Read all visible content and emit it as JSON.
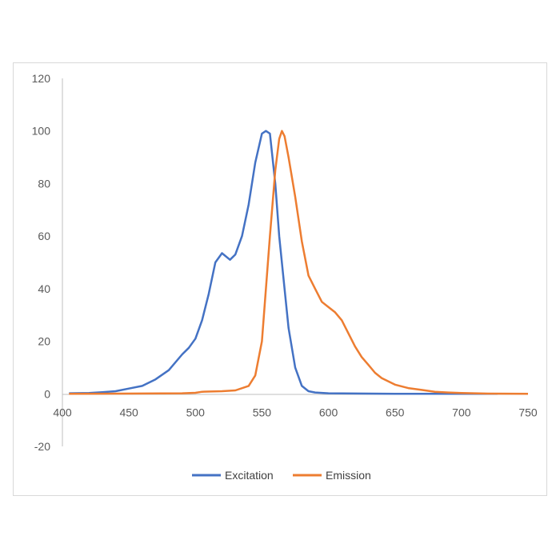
{
  "chart_data": {
    "type": "line",
    "title": "",
    "xlabel": "",
    "ylabel": "",
    "xlim": [
      400,
      750
    ],
    "ylim": [
      -20,
      120
    ],
    "x_ticks": [
      400,
      450,
      500,
      550,
      600,
      650,
      700,
      750
    ],
    "y_ticks": [
      -20,
      0,
      20,
      40,
      60,
      80,
      100,
      120
    ],
    "x_tick_labels": [
      "400",
      "450",
      "500",
      "550",
      "600",
      "650",
      "700",
      "750"
    ],
    "y_tick_labels": [
      "-20",
      "0",
      "20",
      "40",
      "60",
      "80",
      "100",
      "120"
    ],
    "grid": false,
    "legend_position": "bottom",
    "series": [
      {
        "name": "Excitation",
        "color": "#4472C4",
        "points": [
          [
            405,
            0.2
          ],
          [
            420,
            0.3
          ],
          [
            430,
            0.6
          ],
          [
            440,
            1.0
          ],
          [
            450,
            2.0
          ],
          [
            460,
            3.0
          ],
          [
            470,
            5.5
          ],
          [
            480,
            9.0
          ],
          [
            490,
            15.0
          ],
          [
            495,
            17.5
          ],
          [
            500,
            21.0
          ],
          [
            505,
            28.0
          ],
          [
            510,
            38.0
          ],
          [
            515,
            50.0
          ],
          [
            520,
            53.5
          ],
          [
            526,
            51.0
          ],
          [
            530,
            53.0
          ],
          [
            535,
            60.0
          ],
          [
            540,
            72.0
          ],
          [
            545,
            88.0
          ],
          [
            550,
            99.0
          ],
          [
            553,
            100.0
          ],
          [
            556,
            99.0
          ],
          [
            560,
            80.0
          ],
          [
            563,
            60.0
          ],
          [
            566,
            45.0
          ],
          [
            570,
            25.0
          ],
          [
            575,
            10.0
          ],
          [
            580,
            3.0
          ],
          [
            585,
            1.0
          ],
          [
            590,
            0.5
          ],
          [
            600,
            0.2
          ],
          [
            650,
            0.0
          ],
          [
            700,
            0.0
          ],
          [
            727,
            0.0
          ]
        ]
      },
      {
        "name": "Emission",
        "color": "#ED7D31",
        "points": [
          [
            405,
            0.0
          ],
          [
            490,
            0.2
          ],
          [
            500,
            0.4
          ],
          [
            505,
            0.8
          ],
          [
            520,
            1.0
          ],
          [
            530,
            1.3
          ],
          [
            540,
            3.0
          ],
          [
            545,
            7.0
          ],
          [
            550,
            20.0
          ],
          [
            553,
            40.0
          ],
          [
            556,
            60.0
          ],
          [
            560,
            85.0
          ],
          [
            563,
            97.0
          ],
          [
            565,
            100.0
          ],
          [
            567,
            98.0
          ],
          [
            570,
            90.0
          ],
          [
            575,
            75.0
          ],
          [
            580,
            58.0
          ],
          [
            585,
            45.0
          ],
          [
            590,
            40.0
          ],
          [
            595,
            35.0
          ],
          [
            600,
            33.0
          ],
          [
            605,
            31.0
          ],
          [
            610,
            28.0
          ],
          [
            615,
            23.0
          ],
          [
            620,
            18.0
          ],
          [
            625,
            14.0
          ],
          [
            630,
            11.0
          ],
          [
            635,
            8.0
          ],
          [
            640,
            6.0
          ],
          [
            650,
            3.5
          ],
          [
            660,
            2.2
          ],
          [
            670,
            1.5
          ],
          [
            680,
            0.8
          ],
          [
            690,
            0.5
          ],
          [
            700,
            0.3
          ],
          [
            720,
            0.1
          ],
          [
            750,
            0.0
          ]
        ]
      }
    ]
  }
}
